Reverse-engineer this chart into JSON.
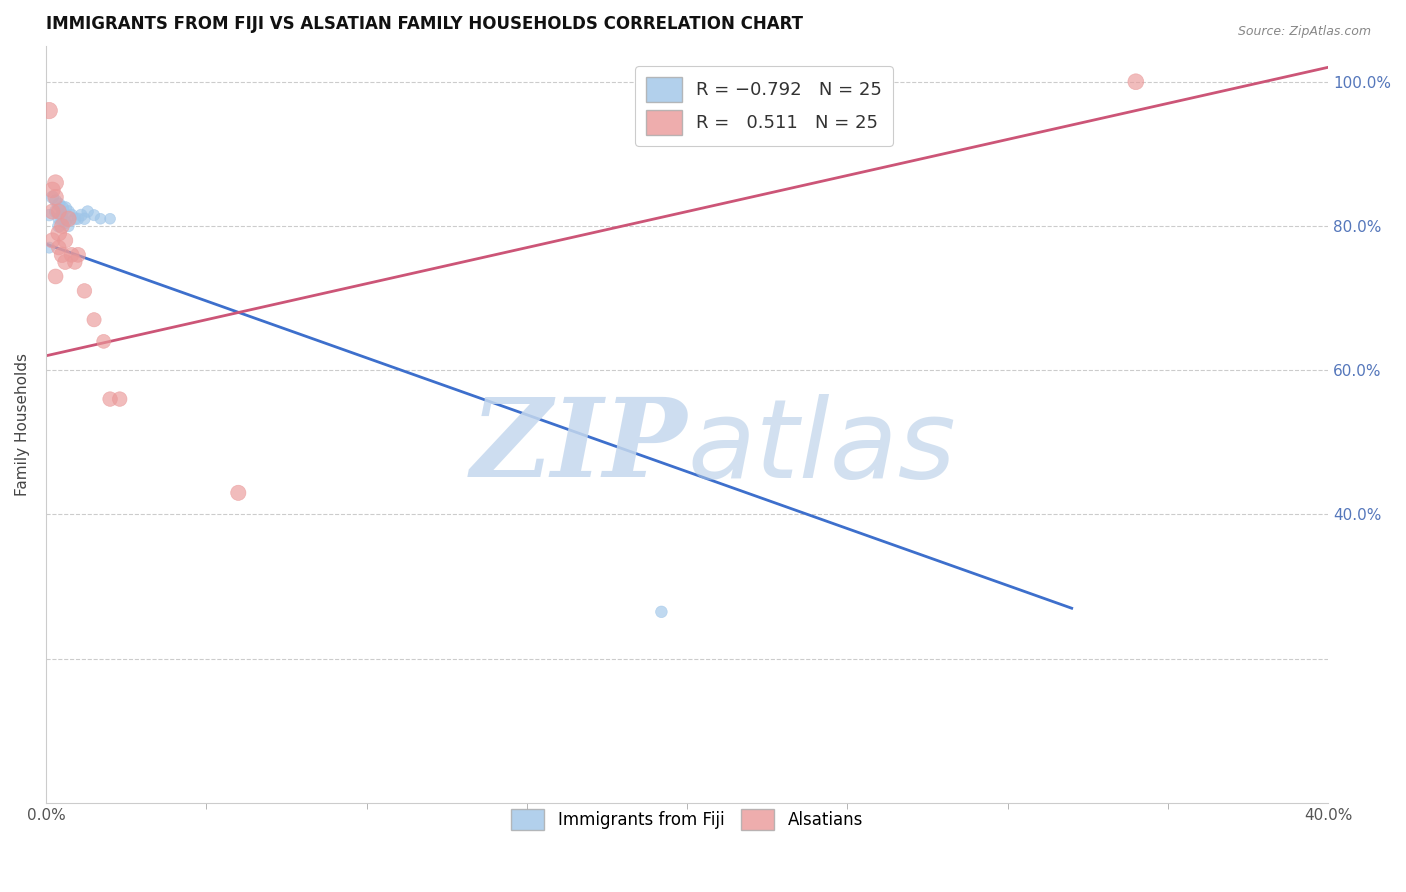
{
  "title": "IMMIGRANTS FROM FIJI VS ALSATIAN FAMILY HOUSEHOLDS CORRELATION CHART",
  "source": "Source: ZipAtlas.com",
  "ylabel": "Family Households",
  "xlim": [
    0.0,
    0.4
  ],
  "ylim": [
    0.0,
    1.05
  ],
  "blue_color": "#9fc5e8",
  "pink_color": "#ea9999",
  "blue_line_color": "#3d6fcc",
  "pink_line_color": "#cc5577",
  "watermark_zip": "ZIP",
  "watermark_atlas": "atlas",
  "right_ytick_positions": [
    0.4,
    0.6,
    0.8,
    1.0
  ],
  "right_ytick_labels": [
    "40.0%",
    "60.0%",
    "80.0%",
    "100.0%"
  ],
  "blue_line_x": [
    0.0,
    0.32
  ],
  "blue_line_y": [
    0.775,
    0.27
  ],
  "pink_line_x": [
    0.0,
    0.4
  ],
  "pink_line_y": [
    0.62,
    1.02
  ],
  "fiji_x": [
    0.002,
    0.003,
    0.001,
    0.004,
    0.003,
    0.004,
    0.005,
    0.004,
    0.005,
    0.006,
    0.005,
    0.007,
    0.006,
    0.008,
    0.007,
    0.009,
    0.01,
    0.011,
    0.012,
    0.013,
    0.015,
    0.017,
    0.02,
    0.192,
    0.001
  ],
  "fiji_y": [
    0.84,
    0.835,
    0.815,
    0.83,
    0.82,
    0.81,
    0.825,
    0.8,
    0.815,
    0.825,
    0.81,
    0.82,
    0.805,
    0.815,
    0.8,
    0.81,
    0.81,
    0.815,
    0.81,
    0.82,
    0.815,
    0.81,
    0.81,
    0.265,
    0.77
  ],
  "fiji_sizes": [
    80,
    75,
    70,
    85,
    80,
    75,
    90,
    80,
    75,
    85,
    80,
    75,
    80,
    75,
    70,
    75,
    70,
    75,
    70,
    70,
    65,
    60,
    60,
    70,
    65
  ],
  "alsatian_x": [
    0.002,
    0.001,
    0.003,
    0.002,
    0.003,
    0.004,
    0.004,
    0.005,
    0.005,
    0.006,
    0.006,
    0.007,
    0.008,
    0.009,
    0.01,
    0.012,
    0.015,
    0.018,
    0.02,
    0.003,
    0.002,
    0.004,
    0.023,
    0.06,
    0.34
  ],
  "alsatian_y": [
    0.85,
    0.96,
    0.86,
    0.82,
    0.84,
    0.79,
    0.82,
    0.76,
    0.8,
    0.78,
    0.75,
    0.81,
    0.76,
    0.75,
    0.76,
    0.71,
    0.67,
    0.64,
    0.56,
    0.73,
    0.78,
    0.77,
    0.56,
    0.43,
    1.0
  ],
  "alsatian_sizes": [
    130,
    140,
    130,
    120,
    125,
    130,
    120,
    125,
    115,
    120,
    115,
    125,
    115,
    110,
    115,
    110,
    105,
    100,
    110,
    115,
    120,
    110,
    110,
    120,
    130
  ]
}
